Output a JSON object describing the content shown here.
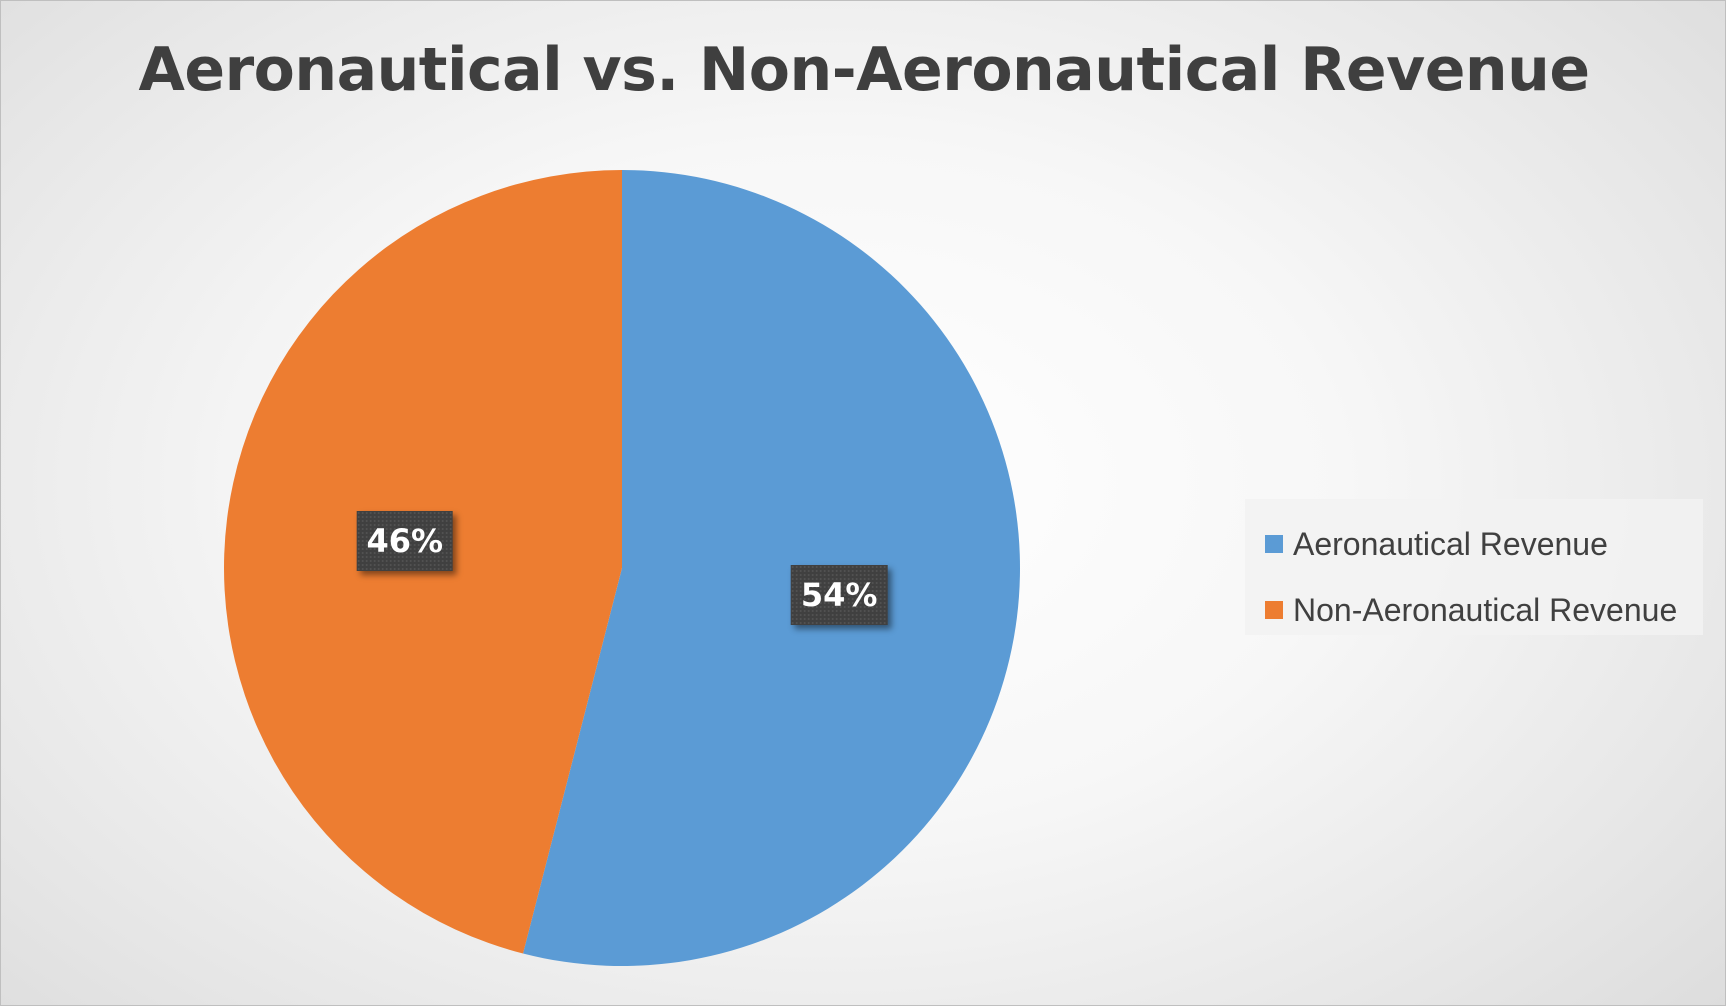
{
  "chart_data": {
    "type": "pie",
    "title": "Aeronautical vs. Non-Aeronautical Revenue",
    "slices": [
      {
        "name": "Aeronautical Revenue",
        "value": 54,
        "label": "54%",
        "color": "#5b9bd5"
      },
      {
        "name": "Non-Aeronautical Revenue",
        "value": 46,
        "label": "46%",
        "color": "#ed7d31"
      }
    ],
    "legend": {
      "position": "right",
      "items": [
        "Aeronautical Revenue",
        "Non-Aeronautical Revenue"
      ]
    }
  }
}
